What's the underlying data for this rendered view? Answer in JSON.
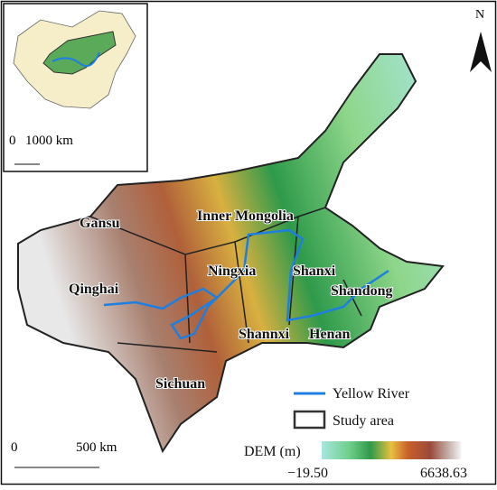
{
  "north": "N",
  "inset": {
    "scale": {
      "start": "0",
      "end": "1000 km"
    }
  },
  "map": {
    "scale": {
      "start": "0",
      "end": "500 km"
    },
    "provinces": [
      "Gansu",
      "Inner Mongolia",
      "Ningxia",
      "Shanxi",
      "Qinghai",
      "Shandong",
      "Shannxi",
      "Henan",
      "Sichuan"
    ]
  },
  "legend": {
    "items": [
      "Yellow River",
      "Study area"
    ],
    "dem_title": "DEM (m)",
    "dem_min": "−19.50",
    "dem_max": "6638.63"
  }
}
